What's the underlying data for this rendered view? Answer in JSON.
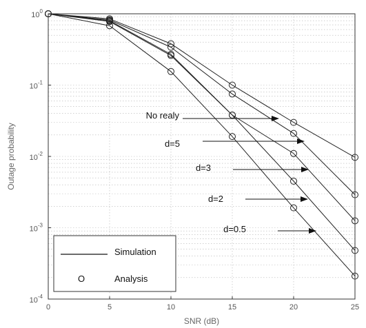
{
  "chart_data": {
    "type": "line",
    "title": "",
    "xlabel": "SNR (dB)",
    "ylabel": "Outage probability",
    "x": [
      0,
      5,
      10,
      15,
      20,
      25
    ],
    "xlim": [
      0,
      25
    ],
    "ylim": [
      0.0001,
      1
    ],
    "yscale": "log",
    "x_ticks": [
      "0",
      "5",
      "10",
      "15",
      "20",
      "25"
    ],
    "y_tick_exponents": [
      "0",
      "-1",
      "-2",
      "-3",
      "-4"
    ],
    "grid": true,
    "series": [
      {
        "label_on_chart": "No realy",
        "values": [
          1.0,
          0.85,
          0.38,
          0.1,
          0.03,
          0.0097
        ]
      },
      {
        "label_on_chart": "d=5",
        "values": [
          1.0,
          0.82,
          0.34,
          0.075,
          0.021,
          0.0029
        ]
      },
      {
        "label_on_chart": "d=3",
        "values": [
          1.0,
          0.8,
          0.27,
          0.038,
          0.011,
          0.00125
        ]
      },
      {
        "label_on_chart": "d=2",
        "values": [
          1.0,
          0.78,
          0.26,
          0.038,
          0.0045,
          0.00048
        ]
      },
      {
        "label_on_chart": "d=0.5",
        "values": [
          1.0,
          0.68,
          0.155,
          0.019,
          0.0019,
          0.00021
        ]
      }
    ],
    "legend": {
      "position": "bottom-left",
      "entries": [
        {
          "marker": "line",
          "text": "Simulation"
        },
        {
          "marker": "O",
          "text": "Analysis"
        }
      ]
    }
  }
}
